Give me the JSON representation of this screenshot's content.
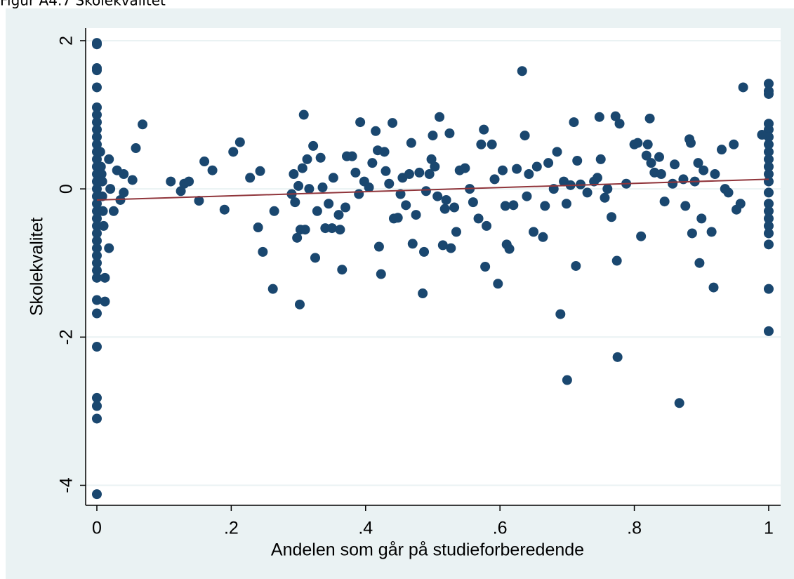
{
  "caption": "Figur A4.7 Skolekvalitet",
  "chart_data": {
    "type": "scatter",
    "x_label": "Andelen som går på studieforberedende",
    "y_label": "Skolekvalitet",
    "color": "#1a476f",
    "xlim": [
      -0.0167,
      1.0178
    ],
    "ylim": [
      -4.27,
      2.17
    ],
    "xticks": [
      0,
      {
        "value": 0.2,
        "label": ".2"
      },
      {
        "value": 0.4,
        "label": ".4"
      },
      {
        "value": 0.6,
        "label": ".6"
      },
      {
        "value": 0.8,
        "label": ".8"
      },
      1
    ],
    "yticks": [
      -4,
      -2,
      0,
      2
    ],
    "grid": true,
    "x": [
      0,
      0,
      0,
      0,
      0,
      0,
      0,
      0,
      0,
      0,
      0,
      0,
      0,
      0,
      0,
      0,
      0,
      0,
      0,
      0,
      0,
      0,
      0,
      0,
      0,
      0,
      0,
      0,
      0,
      0,
      0,
      0,
      0,
      0,
      0,
      0,
      0.005,
      0.006,
      0.007,
      0.008,
      0.008,
      0.009,
      0.01,
      0.012,
      0.012,
      0.018,
      0.018,
      1,
      1,
      1,
      1,
      1,
      1,
      1,
      1,
      1,
      1,
      1,
      1,
      1,
      1,
      1,
      1,
      1,
      1,
      1,
      1,
      1,
      0.02,
      0.025,
      0.03,
      0.035,
      0.04,
      0.04,
      0.053,
      0.058,
      0.068,
      0.11,
      0.125,
      0.13,
      0.137,
      0.152,
      0.16,
      0.172,
      0.19,
      0.203,
      0.213,
      0.228,
      0.24,
      0.243,
      0.247,
      0.262,
      0.264,
      0.29,
      0.293,
      0.295,
      0.298,
      0.3,
      0.302,
      0.303,
      0.306,
      0.308,
      0.31,
      0.313,
      0.316,
      0.322,
      0.325,
      0.328,
      0.333,
      0.336,
      0.34,
      0.345,
      0.35,
      0.352,
      0.36,
      0.362,
      0.365,
      0.37,
      0.372,
      0.38,
      0.385,
      0.39,
      0.392,
      0.398,
      0.405,
      0.41,
      0.415,
      0.418,
      0.42,
      0.423,
      0.428,
      0.43,
      0.435,
      0.44,
      0.442,
      0.448,
      0.452,
      0.455,
      0.46,
      0.465,
      0.468,
      0.47,
      0.475,
      0.48,
      0.485,
      0.487,
      0.49,
      0.495,
      0.498,
      0.5,
      0.503,
      0.507,
      0.51,
      0.515,
      0.518,
      0.52,
      0.525,
      0.527,
      0.532,
      0.535,
      0.54,
      0.548,
      0.555,
      0.56,
      0.568,
      0.572,
      0.576,
      0.578,
      0.58,
      0.588,
      0.592,
      0.597,
      0.604,
      0.608,
      0.61,
      0.614,
      0.62,
      0.625,
      0.633,
      0.637,
      0.64,
      0.643,
      0.65,
      0.655,
      0.664,
      0.667,
      0.672,
      0.68,
      0.685,
      0.69,
      0.695,
      0.699,
      0.7,
      0.705,
      0.71,
      0.713,
      0.715,
      0.72,
      0.73,
      0.74,
      0.745,
      0.748,
      0.75,
      0.756,
      0.76,
      0.766,
      0.772,
      0.774,
      0.775,
      0.778,
      0.788,
      0.8,
      0.805,
      0.81,
      0.818,
      0.82,
      0.823,
      0.825,
      0.83,
      0.837,
      0.84,
      0.845,
      0.857,
      0.86,
      0.867,
      0.873,
      0.876,
      0.882,
      0.884,
      0.886,
      0.89,
      0.895,
      0.897,
      0.9,
      0.903,
      0.915,
      0.918,
      0.92,
      0.93,
      0.935,
      0.94,
      0.948,
      0.952,
      0.958,
      0.962,
      0.99
    ],
    "values": [
      1.97,
      1.95,
      1.63,
      1.6,
      1.37,
      1.1,
      1.0,
      0.9,
      0.8,
      0.7,
      0.6,
      0.5,
      0.4,
      0.3,
      0.2,
      0.1,
      0,
      -0.1,
      -0.2,
      -0.3,
      -0.4,
      -0.5,
      -0.6,
      -0.7,
      -0.8,
      -0.9,
      -1.0,
      -1.1,
      -1.2,
      -1.5,
      -1.68,
      -2.13,
      -2.82,
      -2.93,
      -3.1,
      -4.12,
      0.5,
      0.3,
      0.2,
      0.1,
      -0.1,
      -0.3,
      -0.5,
      -1.2,
      -1.52,
      -0.8,
      0.4,
      1.42,
      1.32,
      1.28,
      0.88,
      0.8,
      0.7,
      0.6,
      0.5,
      0.4,
      0.3,
      0.2,
      0.1,
      -0.05,
      -0.2,
      -0.3,
      -0.4,
      -0.5,
      -0.6,
      -0.75,
      -1.35,
      -1.92,
      0,
      -0.3,
      0.25,
      -0.15,
      0.2,
      -0.05,
      0.12,
      0.55,
      0.87,
      0.1,
      -0.03,
      0.07,
      0.1,
      -0.16,
      0.37,
      0.25,
      -0.28,
      0.5,
      0.63,
      0.15,
      -0.52,
      0.24,
      -0.85,
      -1.35,
      -0.3,
      -0.07,
      0.2,
      -0.18,
      -0.66,
      0.04,
      -1.56,
      -0.55,
      0.28,
      1.0,
      -0.55,
      0.4,
      0,
      0.58,
      -0.93,
      -0.3,
      0.42,
      0.02,
      -0.53,
      -0.2,
      -0.53,
      0.15,
      -0.35,
      -0.55,
      -1.09,
      -0.25,
      0.44,
      0.44,
      0.22,
      -0.07,
      0.9,
      0.1,
      0.02,
      0.35,
      0.78,
      0.52,
      -0.78,
      -1.15,
      0.5,
      0.24,
      0.07,
      0.89,
      -0.4,
      -0.39,
      -0.07,
      0.15,
      -0.22,
      0.2,
      0.62,
      -0.74,
      -0.35,
      0.22,
      -1.41,
      -0.85,
      -0.03,
      0.2,
      0.4,
      0.72,
      0.3,
      -0.1,
      0.97,
      -0.76,
      -0.27,
      -0.15,
      0.75,
      -0.8,
      -0.25,
      -0.58,
      0.25,
      0.28,
      0,
      -0.18,
      -0.4,
      0.6,
      0.8,
      -1.05,
      -0.5,
      0.6,
      0.13,
      -1.28,
      0.25,
      -0.23,
      -0.75,
      -0.81,
      -0.22,
      0.27,
      1.59,
      0.72,
      -0.1,
      0.2,
      -0.58,
      0.3,
      -0.65,
      -0.23,
      0.35,
      0,
      0.5,
      -1.69,
      0.1,
      -0.2,
      -2.58,
      0.05,
      0.9,
      -1.04,
      0.38,
      0.06,
      -0.05,
      0.1,
      0.15,
      0.97,
      0.4,
      -0.12,
      0,
      -0.38,
      0.98,
      -0.97,
      -2.27,
      0.88,
      0.07,
      0.6,
      0.62,
      -0.64,
      0.45,
      0.6,
      0.95,
      0.35,
      0.22,
      0.43,
      0.2,
      -0.17,
      0.07,
      0.33,
      -2.89,
      0.13,
      -0.23,
      0.67,
      0.62,
      -0.6,
      0.1,
      0.35,
      -1.0,
      -0.4,
      0.25,
      -0.58,
      -1.33,
      0.2,
      0.53,
      0,
      -0.05,
      0.6,
      -0.28,
      -0.2,
      1.37,
      0.73
    ],
    "fit_line": {
      "x": [
        0,
        1
      ],
      "values": [
        -0.15,
        0.13
      ],
      "color": "#90353b"
    }
  }
}
